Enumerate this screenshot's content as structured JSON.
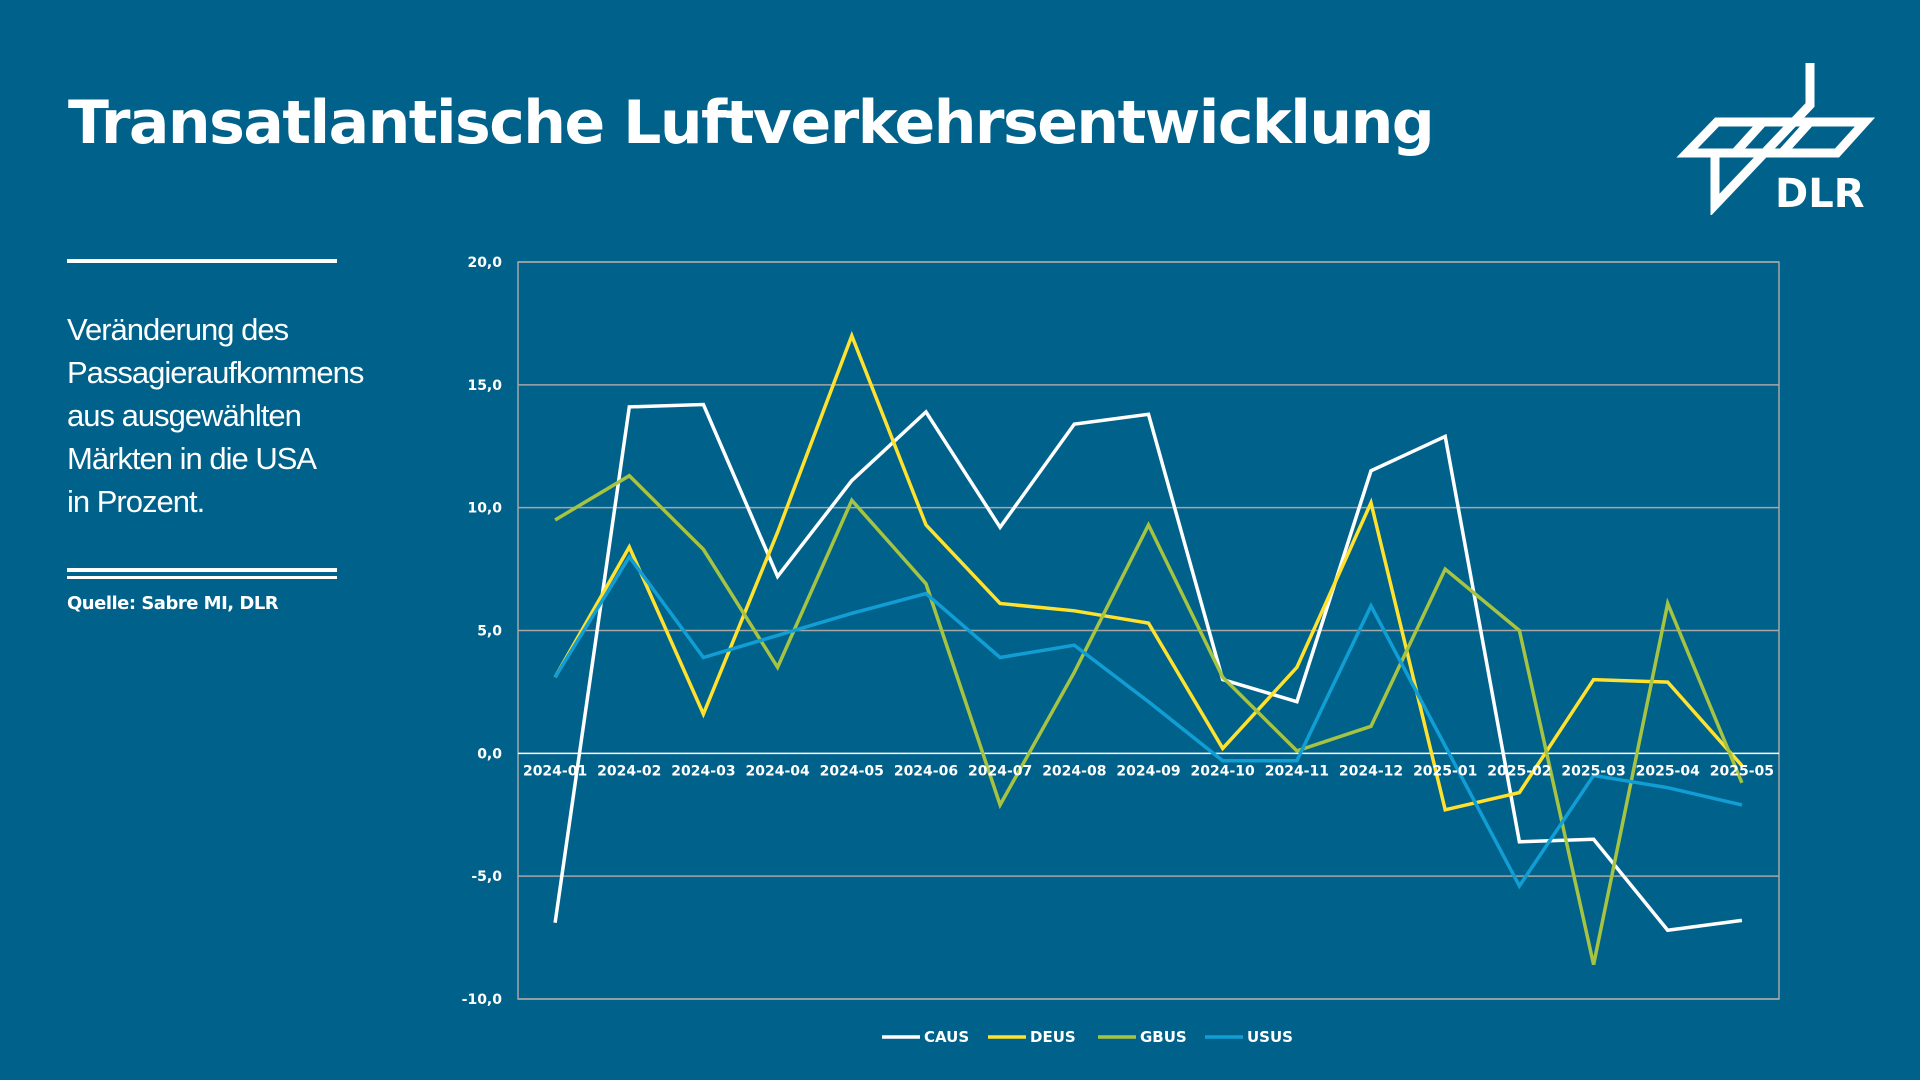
{
  "title": "Transatlantische Luftverkehrsentwicklung",
  "subtitle_lines": [
    "Veränderung des",
    "Passagieraufkommens",
    "aus ausgewählten",
    "Märkten in die USA",
    "in Prozent."
  ],
  "source": "Quelle: Sabre MI, DLR",
  "logo_text": "DLR",
  "chart_data": {
    "type": "line",
    "title": "",
    "xlabel": "",
    "ylabel": "",
    "ylim": [
      -10,
      20
    ],
    "yticks": [
      "20,0",
      "15,0",
      "10,0",
      "5,0",
      "0,0",
      "-5,0",
      "-10,0"
    ],
    "ytick_values": [
      20,
      15,
      10,
      5,
      0,
      -5,
      -10
    ],
    "grid": true,
    "legend": "bottom",
    "categories": [
      "2024-01",
      "2024-02",
      "2024-03",
      "2024-04",
      "2024-05",
      "2024-06",
      "2024-07",
      "2024-08",
      "2024-09",
      "2024-10",
      "2024-11",
      "2024-12",
      "2025-01",
      "2025-02",
      "2025-03",
      "2025-04",
      "2025-05"
    ],
    "series": [
      {
        "name": "CAUS",
        "color": "#ffffff",
        "values": [
          -6.9,
          14.1,
          14.2,
          7.2,
          11.1,
          13.9,
          9.2,
          13.4,
          13.8,
          3.0,
          2.1,
          11.5,
          12.9,
          -3.6,
          -3.5,
          -7.2,
          -6.8
        ]
      },
      {
        "name": "DEUS",
        "color": "#ffe12e",
        "values": [
          3.1,
          8.4,
          1.6,
          9.0,
          17.0,
          9.3,
          6.1,
          5.8,
          5.3,
          0.2,
          3.5,
          10.2,
          -2.3,
          -1.6,
          3.0,
          2.9,
          -0.5
        ]
      },
      {
        "name": "GBUS",
        "color": "#a7c342",
        "values": [
          9.5,
          11.3,
          8.3,
          3.5,
          10.3,
          6.9,
          -2.1,
          3.3,
          9.3,
          3.1,
          0.1,
          1.1,
          7.5,
          5.0,
          -8.6,
          6.1,
          -1.2
        ]
      },
      {
        "name": "USUS",
        "color": "#119ed4",
        "values": [
          3.1,
          8.0,
          3.9,
          4.8,
          5.7,
          6.5,
          3.9,
          4.4,
          2.1,
          -0.3,
          -0.3,
          6.0,
          0.3,
          -5.4,
          -0.9,
          -1.4,
          -2.1
        ]
      }
    ]
  }
}
